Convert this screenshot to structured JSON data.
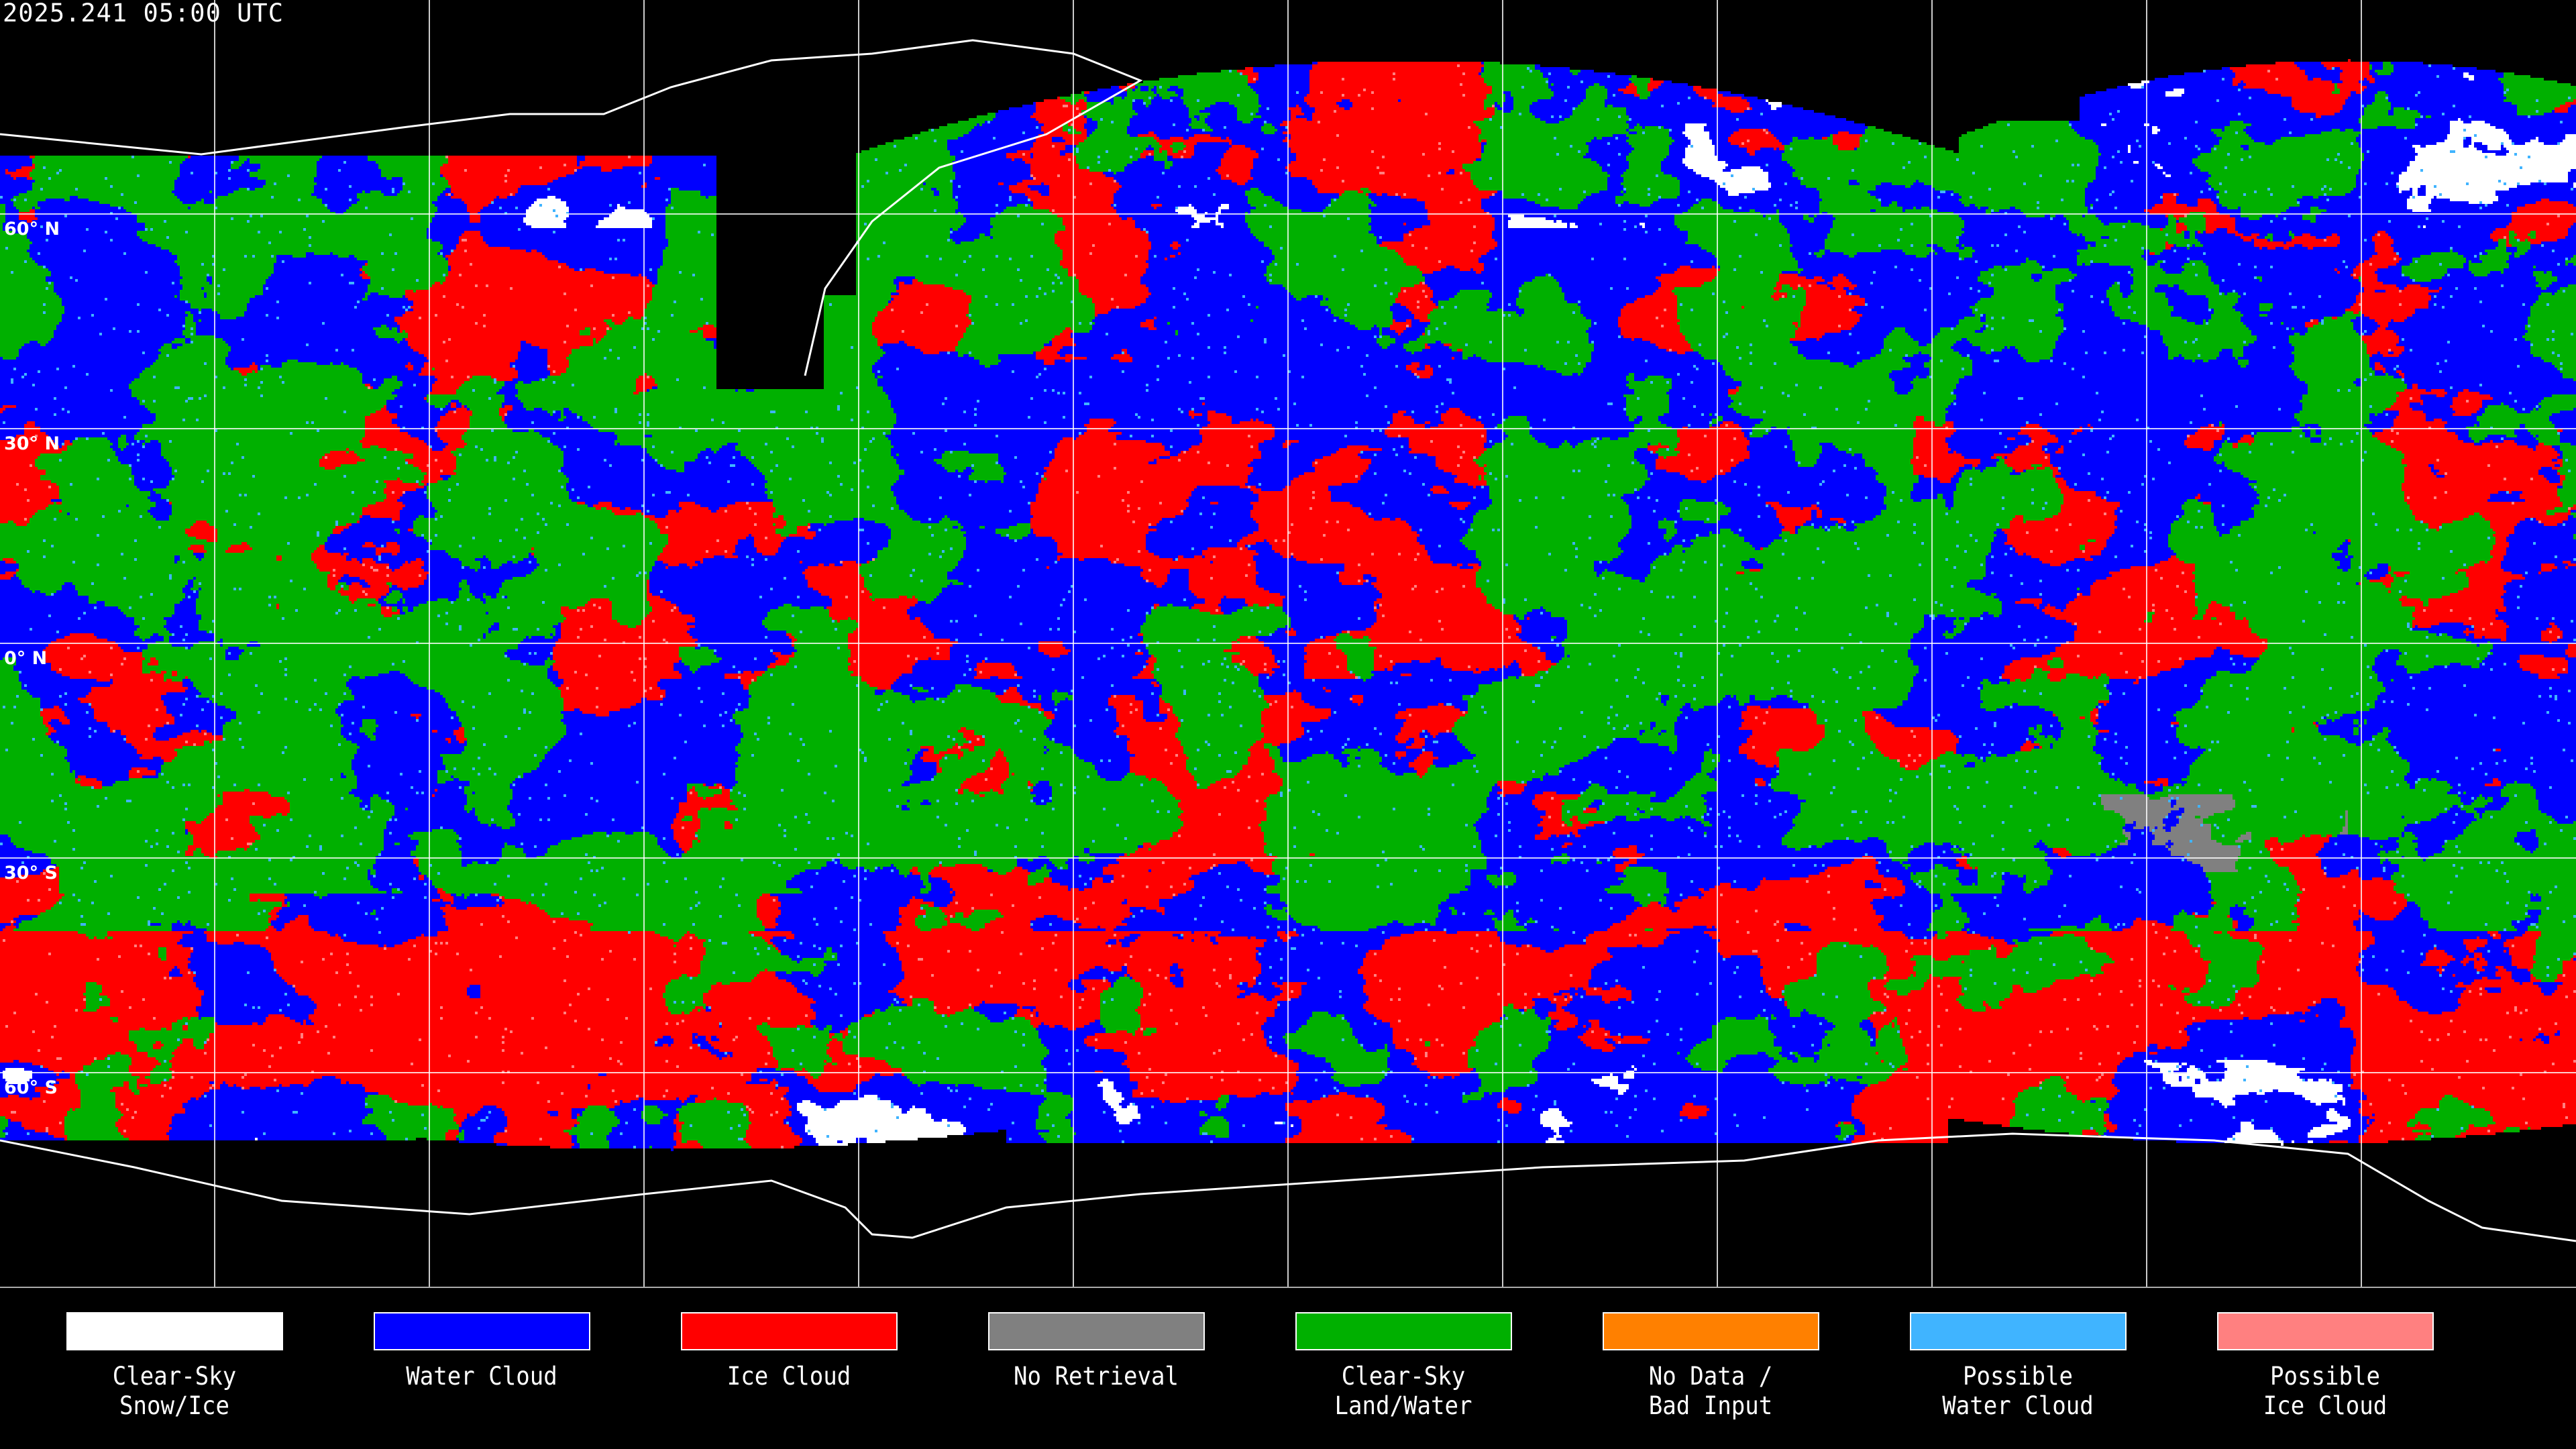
{
  "title": "2025.241 05:00 UTC",
  "latitude_labels": [
    "60° N",
    "30° N",
    "0° N",
    "30° S",
    "60° S"
  ],
  "legend": [
    {
      "line1": "Clear-Sky",
      "line2": "Snow/Ice",
      "color": "#ffffff"
    },
    {
      "line1": "Water Cloud",
      "line2": "",
      "color": "#0000ff"
    },
    {
      "line1": "Ice Cloud",
      "line2": "",
      "color": "#ff0000"
    },
    {
      "line1": "No Retrieval",
      "line2": "",
      "color": "#808080"
    },
    {
      "line1": "Clear-Sky",
      "line2": "Land/Water",
      "color": "#00b000"
    },
    {
      "line1": "No Data /",
      "line2": "Bad Input",
      "color": "#ff8000"
    },
    {
      "line1": "Possible",
      "line2": "Water Cloud",
      "color": "#40b4ff"
    },
    {
      "line1": "Possible",
      "line2": "Ice Cloud",
      "color": "#ff8080"
    }
  ]
}
